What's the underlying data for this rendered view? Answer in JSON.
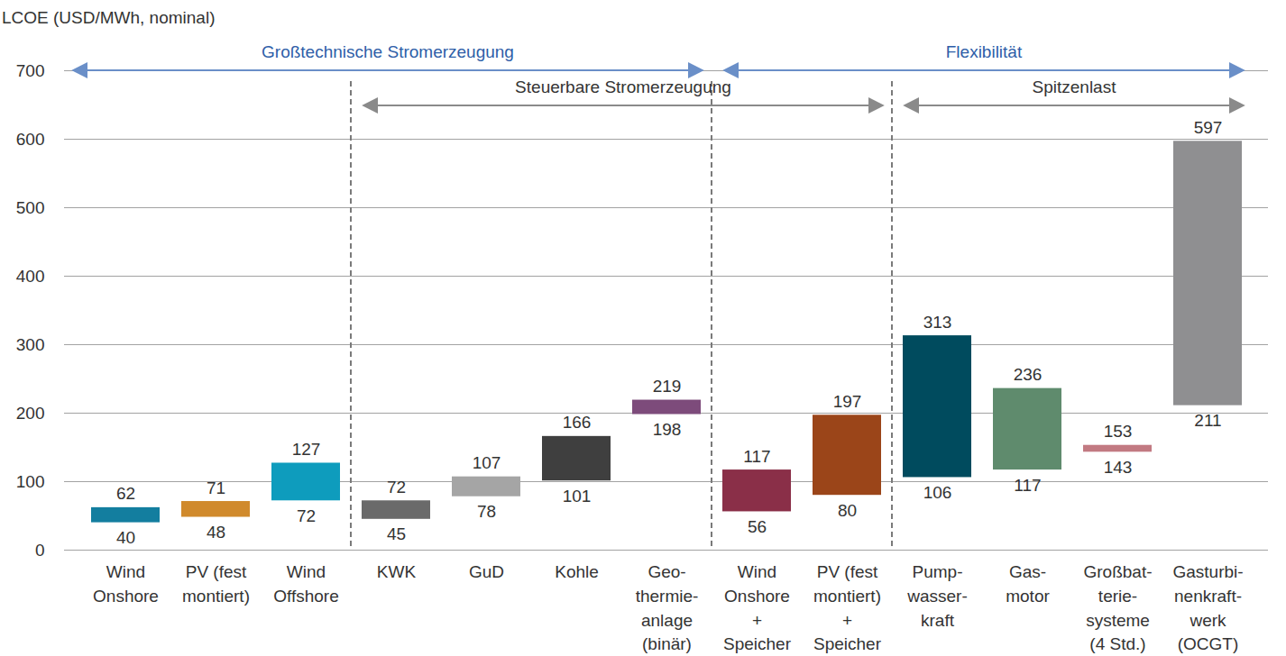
{
  "chart_data": {
    "type": "bar",
    "y_label": "LCOE (USD/MWh, nominal)",
    "categories": [
      "Wind\nOnshore",
      "PV (fest\nmontiert)",
      "Wind\nOffshore",
      "KWK",
      "GuD",
      "Kohle",
      "Geo-\nthermie-\nanlage\n(binär)",
      "Wind\nOnshore\n+\nSpeicher",
      "PV (fest\nmontiert)\n+\nSpeicher",
      "Pump-\nwasser-\nkraft",
      "Gas-\nmotor",
      "Großbat-\nterie-\nsysteme\n(4 Std.)",
      "Gasturbi-\nnenkraft-\nwerk\n(OCGT)"
    ],
    "low": [
      40,
      48,
      72,
      45,
      78,
      101,
      198,
      56,
      80,
      106,
      117,
      143,
      211
    ],
    "high": [
      62,
      71,
      127,
      72,
      107,
      166,
      219,
      117,
      197,
      313,
      236,
      153,
      597
    ],
    "colors": [
      "#137e9f",
      "#d08a2c",
      "#0e9cbd",
      "#6a6a6a",
      "#a5a5a5",
      "#3f3f3f",
      "#7d4b7b",
      "#8a2f48",
      "#9b4519",
      "#004b5e",
      "#5f8b6d",
      "#c27a82",
      "#8f8f91"
    ],
    "ylim": [
      0,
      700
    ],
    "yticks": [
      0,
      100,
      200,
      300,
      400,
      500,
      600,
      700
    ],
    "grid": true,
    "data_labels": true,
    "groups": [
      {
        "label": "Großtechnische Stromerzeugung",
        "from": "Wind\nOnshore",
        "to": "Geo-\nthermie-\nanlage\n(binär)"
      },
      {
        "label": "Flexibilität",
        "from": "Wind\nOnshore\n+\nSpeicher",
        "to": "Gasturbi-\nnenkraft-\nwerk\n(OCGT)"
      }
    ],
    "subgroups": [
      {
        "label": "Steuerbare Stromerzeugung",
        "from": "KWK",
        "to": "PV (fest\nmontiert)\n+\nSpeicher"
      },
      {
        "label": "Spitzenlast",
        "from": "Pump-\nwasser-\nkraft",
        "to": "Gasturbi-\nnenkraft-\nwerk\n(OCGT)"
      }
    ]
  }
}
